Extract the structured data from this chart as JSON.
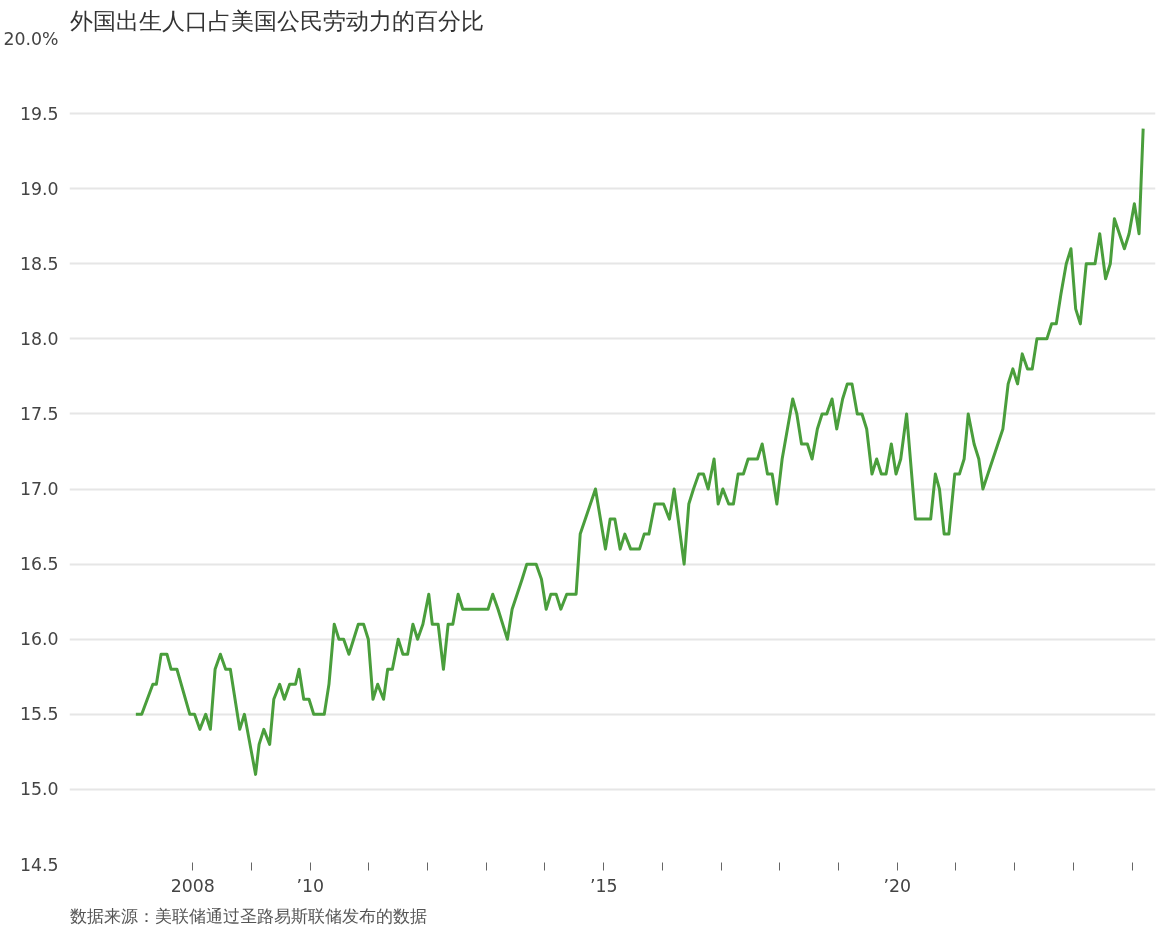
{
  "chart_data": {
    "type": "line",
    "title": "外国出生人口占美国公民劳动力的百分比",
    "annotations": [
      "数据来源：美联储通过圣路易斯联储发布的数据"
    ],
    "x": [
      2007.03,
      2007.13,
      2007.32,
      2007.38,
      2007.46,
      2007.56,
      2007.63,
      2007.73,
      2007.95,
      2008.03,
      2008.12,
      2008.22,
      2008.3,
      2008.38,
      2008.47,
      2008.56,
      2008.64,
      2008.8,
      2008.88,
      2009.07,
      2009.13,
      2009.21,
      2009.31,
      2009.38,
      2009.48,
      2009.56,
      2009.65,
      2009.75,
      2009.81,
      2009.89,
      2009.98,
      2010.06,
      2010.24,
      2010.32,
      2010.41,
      2010.49,
      2010.57,
      2010.66,
      2010.74,
      2010.82,
      2010.91,
      2010.99,
      2011.07,
      2011.15,
      2011.25,
      2011.32,
      2011.4,
      2011.5,
      2011.58,
      2011.66,
      2011.75,
      2011.83,
      2011.92,
      2012.02,
      2012.08,
      2012.18,
      2012.27,
      2012.35,
      2012.43,
      2012.52,
      2012.6,
      2012.95,
      2013.03,
      2013.11,
      2013.2,
      2013.36,
      2013.44,
      2013.61,
      2013.69,
      2013.85,
      2013.94,
      2014.02,
      2014.1,
      2014.19,
      2014.27,
      2014.37,
      2014.53,
      2014.6,
      2014.86,
      2015.03,
      2015.11,
      2015.19,
      2015.28,
      2015.36,
      2015.46,
      2015.61,
      2015.69,
      2015.77,
      2015.87,
      2016.02,
      2016.12,
      2016.2,
      2016.37,
      2016.45,
      2016.53,
      2016.62,
      2016.7,
      2016.78,
      2016.88,
      2016.95,
      2017.03,
      2017.13,
      2017.21,
      2017.29,
      2017.38,
      2017.46,
      2017.62,
      2017.7,
      2017.79,
      2017.87,
      2017.95,
      2018.04,
      2018.22,
      2018.29,
      2018.37,
      2018.47,
      2018.55,
      2018.64,
      2018.72,
      2018.8,
      2018.89,
      2018.97,
      2019.07,
      2019.15,
      2019.23,
      2019.32,
      2019.4,
      2019.48,
      2019.57,
      2019.65,
      2019.73,
      2019.81,
      2019.9,
      2019.98,
      2020.06,
      2020.16,
      2020.31,
      2020.57,
      2020.65,
      2020.72,
      2020.8,
      2020.88,
      2020.98,
      2021.06,
      2021.14,
      2021.21,
      2021.31,
      2021.39,
      2021.46,
      2021.8,
      2021.89,
      2021.97,
      2022.05,
      2022.13,
      2022.22,
      2022.3,
      2022.38,
      2022.55,
      2022.63,
      2022.71,
      2022.79,
      2022.88,
      2022.96,
      2023.04,
      2023.12,
      2023.22,
      2023.37,
      2023.45,
      2023.55,
      2023.63,
      2023.7,
      2023.87,
      2023.95,
      2024.04,
      2024.12,
      2024.19
    ],
    "series": [
      {
        "color": "#4a9e3c",
        "values": [
          15.5,
          15.5,
          15.7,
          15.7,
          15.9,
          15.9,
          15.8,
          15.8,
          15.5,
          15.5,
          15.4,
          15.5,
          15.4,
          15.8,
          15.9,
          15.8,
          15.8,
          15.4,
          15.5,
          15.1,
          15.3,
          15.4,
          15.3,
          15.6,
          15.7,
          15.6,
          15.7,
          15.7,
          15.8,
          15.6,
          15.6,
          15.5,
          15.5,
          15.7,
          16.1,
          16.0,
          16.0,
          15.9,
          16.0,
          16.1,
          16.1,
          16.0,
          15.6,
          15.7,
          15.6,
          15.8,
          15.8,
          16.0,
          15.9,
          15.9,
          16.1,
          16.0,
          16.1,
          16.3,
          16.1,
          16.1,
          15.8,
          16.1,
          16.1,
          16.3,
          16.2,
          16.2,
          16.2,
          16.3,
          16.2,
          16.0,
          16.2,
          16.4,
          16.5,
          16.5,
          16.4,
          16.2,
          16.3,
          16.3,
          16.2,
          16.3,
          16.3,
          16.7,
          17.0,
          16.6,
          16.8,
          16.8,
          16.6,
          16.7,
          16.6,
          16.6,
          16.7,
          16.7,
          16.9,
          16.9,
          16.8,
          17.0,
          16.5,
          16.9,
          17.0,
          17.1,
          17.1,
          17.0,
          17.2,
          16.9,
          17.0,
          16.9,
          16.9,
          17.1,
          17.1,
          17.2,
          17.2,
          17.3,
          17.1,
          17.1,
          16.9,
          17.2,
          17.6,
          17.5,
          17.3,
          17.3,
          17.2,
          17.4,
          17.5,
          17.5,
          17.6,
          17.4,
          17.6,
          17.7,
          17.7,
          17.5,
          17.5,
          17.4,
          17.1,
          17.2,
          17.1,
          17.1,
          17.3,
          17.1,
          17.2,
          17.5,
          16.8,
          16.8,
          17.1,
          17.0,
          16.7,
          16.7,
          17.1,
          17.1,
          17.2,
          17.5,
          17.3,
          17.2,
          17.0,
          17.4,
          17.7,
          17.8,
          17.7,
          17.9,
          17.8,
          17.8,
          18.0,
          18.0,
          18.1,
          18.1,
          18.3,
          18.5,
          18.6,
          18.2,
          18.1,
          18.5,
          18.5,
          18.7,
          18.4,
          18.5,
          18.8,
          18.6,
          18.7,
          18.9,
          18.7,
          19.4
        ]
      }
    ],
    "xlim": [
      2005.9,
      2024.4
    ],
    "xticks": [
      {
        "value": 2008,
        "label": "2008"
      },
      {
        "value": 2009,
        "label": null
      },
      {
        "value": 2010,
        "label": "’10"
      },
      {
        "value": 2011,
        "label": null
      },
      {
        "value": 2012,
        "label": null
      },
      {
        "value": 2013,
        "label": null
      },
      {
        "value": 2014,
        "label": null
      },
      {
        "value": 2015,
        "label": "’15"
      },
      {
        "value": 2016,
        "label": null
      },
      {
        "value": 2017,
        "label": null
      },
      {
        "value": 2018,
        "label": null
      },
      {
        "value": 2019,
        "label": null
      },
      {
        "value": 2020,
        "label": "’20"
      },
      {
        "value": 2021,
        "label": null
      },
      {
        "value": 2022,
        "label": null
      },
      {
        "value": 2023,
        "label": null
      },
      {
        "value": 2024,
        "label": null
      }
    ],
    "ylim": [
      14.5,
      20.0
    ],
    "yticks": [
      14.5,
      {
        "value": 15,
        "label": "15.0"
      },
      15.5,
      {
        "value": 16,
        "label": "16.0"
      },
      16.5,
      {
        "value": 17,
        "label": "17.0"
      },
      17.5,
      {
        "value": 18,
        "label": "18.0"
      },
      18.5,
      {
        "value": 19,
        "label": "19.0"
      },
      19.5,
      {
        "value": 20,
        "label": "20.0%"
      }
    ],
    "grid": "y",
    "line_style": "solid",
    "marker": "none"
  }
}
